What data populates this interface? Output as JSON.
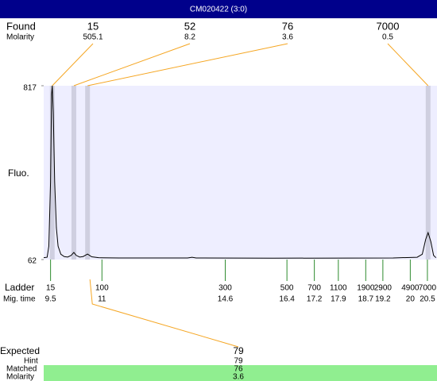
{
  "header": {
    "title": "CM020422 (3:0)"
  },
  "chart_data": {
    "type": "line",
    "y_label": "Fluo.",
    "color": "#000000",
    "background": "#eeeeff",
    "xlim": [
      9.3,
      20.78
    ],
    "ylim": [
      62,
      817
    ],
    "yticks": [
      62,
      817
    ],
    "x": [
      9.3,
      9.4,
      9.45,
      9.5,
      9.53,
      9.55,
      9.58,
      9.62,
      9.67,
      9.72,
      9.8,
      9.9,
      10.0,
      10.1,
      10.18,
      10.25,
      10.35,
      10.45,
      10.58,
      10.7,
      10.9,
      11.5,
      13.5,
      13.63,
      13.75,
      16,
      19.5,
      20.2,
      20.35,
      20.45,
      20.52,
      20.6,
      20.68,
      20.75
    ],
    "values": [
      70,
      72,
      120,
      400,
      780,
      817,
      700,
      400,
      200,
      120,
      85,
      75,
      73,
      80,
      93,
      80,
      73,
      75,
      86,
      74,
      70,
      69,
      69,
      72,
      69,
      68,
      69,
      72,
      85,
      150,
      179,
      140,
      80,
      70
    ],
    "found": {
      "label": "Found",
      "molarity_label": "Molarity",
      "peaks": [
        {
          "size": 15,
          "molarity": 505.1,
          "time": 9.55
        },
        {
          "size": 52,
          "molarity": 8.2,
          "time": 10.18
        },
        {
          "size": 76,
          "molarity": 3.6,
          "time": 10.58
        },
        {
          "size": 7000,
          "molarity": 0.5,
          "time": 20.52
        }
      ]
    },
    "ladder": {
      "label": "Ladder",
      "time_label": "Mig. time",
      "sizes": [
        15,
        100,
        300,
        500,
        700,
        1100,
        1900,
        2900,
        4900,
        7000
      ],
      "times": [
        9.5,
        11,
        14.6,
        16.4,
        17.2,
        17.9,
        18.7,
        19.2,
        20,
        20.5
      ]
    },
    "expected": {
      "label": "Expected",
      "value": 79,
      "hint_label": "Hint",
      "hint": 79,
      "matched_label": "Matched",
      "matched": 76,
      "molarity_label": "Molarity",
      "molarity": 3.6
    }
  }
}
